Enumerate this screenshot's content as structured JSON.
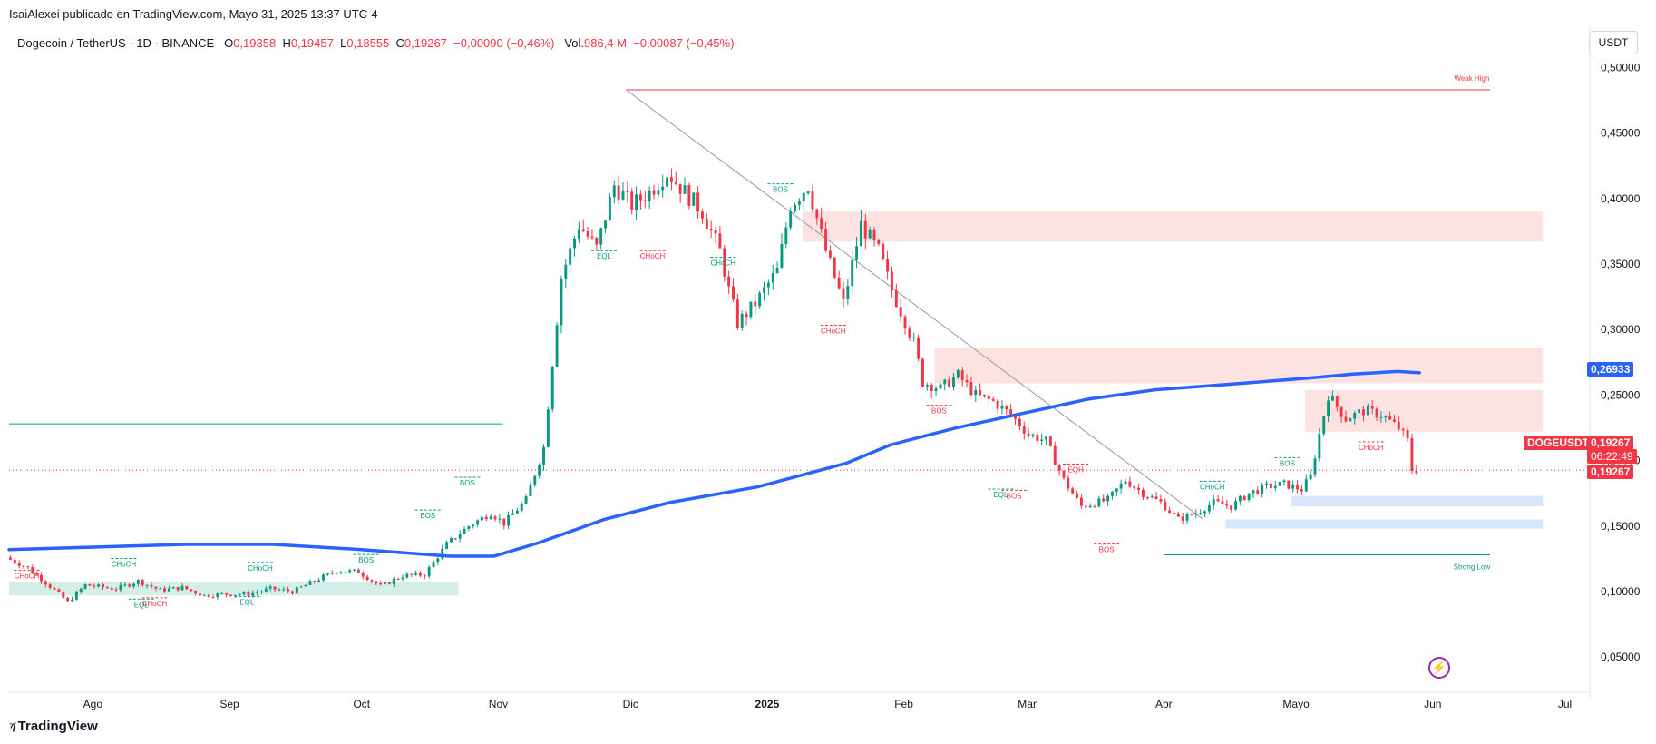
{
  "header": {
    "credit": "IsaiAlexei publicado en TradingView.com, Mayo 31, 2025 13:37 UTC-4"
  },
  "symbol": {
    "name": "Dogecoin / TetherUS · 1D · BINANCE",
    "o_label": "O",
    "o_value": "0,19358",
    "h_label": "H",
    "h_value": "0,19457",
    "l_label": "L",
    "l_value": "0,18555",
    "c_label": "C",
    "c_value": "0,19267",
    "change": "−0,00090 (−0,46%)",
    "vol_label": "Vol.",
    "vol_value": "986,4 M",
    "vol_change": "−0,00087 (−0,45%)"
  },
  "currency": "USDT",
  "footer": {
    "logo_text": "TradingView",
    "logo_icon": "tradingview-logo-icon"
  },
  "flash_icon": "lightning-icon",
  "price_tags": {
    "ma_value": "0,26933",
    "ticker": "DOGEUSDT",
    "last_price": "0,19267",
    "countdown": "06:22:49",
    "last_price2": "0,19267"
  },
  "colors": {
    "up": "#089981",
    "down": "#f23645",
    "ma": "#2962ff",
    "supply_zone": "#fde2e2",
    "demand_zone": "#d6e6fb",
    "demand_zone_green": "#d4efe8",
    "price_line": "#f23645"
  },
  "chart_data": {
    "type": "candlestick",
    "y_axis": {
      "min": 0.03,
      "max": 0.51,
      "ticks": [
        "0,50000",
        "0,45000",
        "0,40000",
        "0,35000",
        "0,30000",
        "0,25000",
        "0,20000",
        "0,15000",
        "0,10000",
        "0,05000"
      ],
      "tick_values": [
        0.5,
        0.45,
        0.4,
        0.35,
        0.3,
        0.25,
        0.2,
        0.15,
        0.1,
        0.05
      ],
      "position": "right"
    },
    "x_axis": {
      "labels": [
        "Ago",
        "Sep",
        "Oct",
        "Nov",
        "Dic",
        "2025",
        "Feb",
        "Mar",
        "Abr",
        "Mayo",
        "Jun",
        "Jul"
      ],
      "label_days": [
        19,
        50,
        80,
        111,
        141,
        172,
        203,
        231,
        262,
        292,
        323,
        353
      ],
      "day_start": 0,
      "day_end": 357
    },
    "price_path": [
      [
        0,
        0.126
      ],
      [
        5,
        0.118
      ],
      [
        10,
        0.104
      ],
      [
        14,
        0.092
      ],
      [
        18,
        0.105
      ],
      [
        25,
        0.102
      ],
      [
        30,
        0.108
      ],
      [
        35,
        0.101
      ],
      [
        40,
        0.103
      ],
      [
        45,
        0.097
      ],
      [
        50,
        0.098
      ],
      [
        55,
        0.098
      ],
      [
        60,
        0.102
      ],
      [
        65,
        0.1
      ],
      [
        70,
        0.108
      ],
      [
        75,
        0.116
      ],
      [
        80,
        0.115
      ],
      [
        85,
        0.104
      ],
      [
        90,
        0.112
      ],
      [
        95,
        0.113
      ],
      [
        100,
        0.136
      ],
      [
        105,
        0.15
      ],
      [
        110,
        0.16
      ],
      [
        113,
        0.152
      ],
      [
        118,
        0.17
      ],
      [
        122,
        0.21
      ],
      [
        126,
        0.34
      ],
      [
        130,
        0.38
      ],
      [
        134,
        0.362
      ],
      [
        138,
        0.41
      ],
      [
        142,
        0.395
      ],
      [
        146,
        0.405
      ],
      [
        150,
        0.42
      ],
      [
        154,
        0.405
      ],
      [
        158,
        0.39
      ],
      [
        162,
        0.36
      ],
      [
        164,
        0.33
      ],
      [
        166,
        0.305
      ],
      [
        170,
        0.32
      ],
      [
        175,
        0.345
      ],
      [
        178,
        0.395
      ],
      [
        182,
        0.41
      ],
      [
        186,
        0.36
      ],
      [
        190,
        0.32
      ],
      [
        194,
        0.38
      ],
      [
        198,
        0.36
      ],
      [
        201,
        0.33
      ],
      [
        206,
        0.29
      ],
      [
        208,
        0.26
      ],
      [
        212,
        0.255
      ],
      [
        216,
        0.265
      ],
      [
        220,
        0.25
      ],
      [
        224,
        0.245
      ],
      [
        228,
        0.235
      ],
      [
        232,
        0.22
      ],
      [
        236,
        0.215
      ],
      [
        240,
        0.185
      ],
      [
        244,
        0.165
      ],
      [
        250,
        0.17
      ],
      [
        254,
        0.185
      ],
      [
        258,
        0.175
      ],
      [
        262,
        0.168
      ],
      [
        266,
        0.155
      ],
      [
        270,
        0.16
      ],
      [
        274,
        0.168
      ],
      [
        278,
        0.165
      ],
      [
        282,
        0.175
      ],
      [
        286,
        0.18
      ],
      [
        290,
        0.182
      ],
      [
        294,
        0.178
      ],
      [
        296,
        0.188
      ],
      [
        298,
        0.22
      ],
      [
        300,
        0.25
      ],
      [
        304,
        0.232
      ],
      [
        308,
        0.238
      ],
      [
        312,
        0.235
      ],
      [
        316,
        0.225
      ],
      [
        318,
        0.215
      ],
      [
        319,
        0.193
      ]
    ],
    "moving_average": {
      "name": "",
      "points": [
        [
          0,
          0.132
        ],
        [
          20,
          0.134
        ],
        [
          40,
          0.136
        ],
        [
          60,
          0.136
        ],
        [
          80,
          0.132
        ],
        [
          100,
          0.127
        ],
        [
          110,
          0.127
        ],
        [
          120,
          0.137
        ],
        [
          135,
          0.155
        ],
        [
          150,
          0.168
        ],
        [
          170,
          0.18
        ],
        [
          190,
          0.198
        ],
        [
          200,
          0.212
        ],
        [
          215,
          0.225
        ],
        [
          230,
          0.236
        ],
        [
          245,
          0.247
        ],
        [
          260,
          0.254
        ],
        [
          280,
          0.259
        ],
        [
          295,
          0.263
        ],
        [
          305,
          0.266
        ],
        [
          315,
          0.268
        ],
        [
          320,
          0.267
        ]
      ],
      "last_value": 0.26933
    },
    "last_price": 0.19267,
    "zones": [
      {
        "kind": "supply",
        "x1": 180,
        "x2": 348,
        "y1": 0.367,
        "y2": 0.39
      },
      {
        "kind": "supply",
        "x1": 210,
        "x2": 348,
        "y1": 0.259,
        "y2": 0.286
      },
      {
        "kind": "supply",
        "x1": 294,
        "x2": 348,
        "y1": 0.222,
        "y2": 0.254
      },
      {
        "kind": "demand",
        "x1": 291,
        "x2": 348,
        "y1": 0.165,
        "y2": 0.173
      },
      {
        "kind": "demand",
        "x1": 276,
        "x2": 348,
        "y1": 0.148,
        "y2": 0.155
      },
      {
        "kind": "demand",
        "x1": 0,
        "x2": 102,
        "y1": 0.097,
        "y2": 0.107
      }
    ],
    "horizontal_lines": [
      {
        "label": "Weak High",
        "x1": 140,
        "x2": 336,
        "y": 0.483,
        "color": "#f23645"
      },
      {
        "label": "Strong Low",
        "x1": 262,
        "x2": 336,
        "y": 0.128,
        "color": "#089981"
      },
      {
        "label": "",
        "x1": 0,
        "x2": 112,
        "y": 0.228,
        "color": "#089981"
      }
    ],
    "trendline": {
      "x1": 140,
      "y1": 0.483,
      "x2": 271,
      "y2": 0.155
    },
    "annotations": [
      {
        "text": "CHoCH",
        "x": 4,
        "y": 0.11,
        "color": "#f23645"
      },
      {
        "text": "CHoCH",
        "x": 26,
        "y": 0.119,
        "color": "#089981"
      },
      {
        "text": "CHoCH",
        "x": 57,
        "y": 0.116,
        "color": "#089981"
      },
      {
        "text": "EQL",
        "x": 30,
        "y": 0.088,
        "color": "#089981"
      },
      {
        "text": "CHoCH",
        "x": 33,
        "y": 0.089,
        "color": "#f23645"
      },
      {
        "text": "EQL",
        "x": 54,
        "y": 0.09,
        "color": "#089981"
      },
      {
        "text": "BOS",
        "x": 81,
        "y": 0.122,
        "color": "#089981"
      },
      {
        "text": "BOS",
        "x": 95,
        "y": 0.156,
        "color": "#089981"
      },
      {
        "text": "BOS",
        "x": 104,
        "y": 0.181,
        "color": "#089981"
      },
      {
        "text": "EQL",
        "x": 135,
        "y": 0.354,
        "color": "#089981"
      },
      {
        "text": "CHoCH",
        "x": 146,
        "y": 0.354,
        "color": "#f23645"
      },
      {
        "text": "CHoCH",
        "x": 162,
        "y": 0.349,
        "color": "#089981"
      },
      {
        "text": "BOS",
        "x": 175,
        "y": 0.405,
        "color": "#089981"
      },
      {
        "text": "CHoCH",
        "x": 187,
        "y": 0.297,
        "color": "#f23645"
      },
      {
        "text": "BOS",
        "x": 211,
        "y": 0.236,
        "color": "#f23645"
      },
      {
        "text": "EQL",
        "x": 225,
        "y": 0.172,
        "color": "#089981"
      },
      {
        "text": "BOS",
        "x": 228,
        "y": 0.171,
        "color": "#f23645"
      },
      {
        "text": "EQH",
        "x": 242,
        "y": 0.191,
        "color": "#f23645"
      },
      {
        "text": "BOS",
        "x": 249,
        "y": 0.13,
        "color": "#f23645"
      },
      {
        "text": "CHoCH",
        "x": 273,
        "y": 0.178,
        "color": "#089981"
      },
      {
        "text": "BOS",
        "x": 290,
        "y": 0.196,
        "color": "#089981"
      },
      {
        "text": "CHoCH",
        "x": 309,
        "y": 0.208,
        "color": "#f23645"
      }
    ]
  }
}
